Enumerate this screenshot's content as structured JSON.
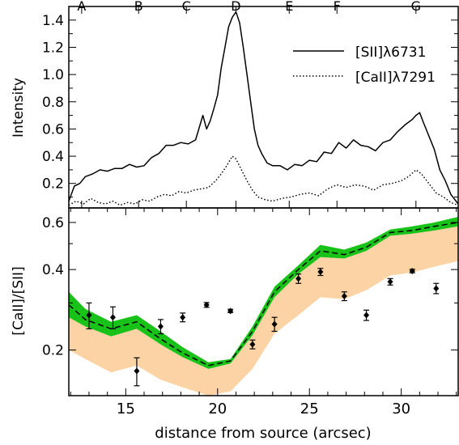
{
  "chart_data": [
    {
      "type": "line",
      "ylabel": "Intensity",
      "xlim": [
        11.9,
        33.1
      ],
      "ylim": [
        0.02,
        1.5
      ],
      "yticks": [
        0.2,
        0.4,
        0.6,
        0.8,
        1.0,
        1.2,
        1.4
      ],
      "ytick_labels": [
        "0.2",
        "0.4",
        "0.6",
        "0.8",
        "1.0",
        "1.2",
        "1.4"
      ],
      "top_markers": [
        {
          "label": "A",
          "x": 12.6
        },
        {
          "label": "B",
          "x": 15.7
        },
        {
          "label": "C",
          "x": 18.3
        },
        {
          "label": "D",
          "x": 21.0
        },
        {
          "label": "E",
          "x": 23.9
        },
        {
          "label": "F",
          "x": 26.5
        },
        {
          "label": "G",
          "x": 30.8
        }
      ],
      "legend": "top-right",
      "series": [
        {
          "name": "[SII]λ6731",
          "style": "solid",
          "x": [
            11.9,
            12.2,
            12.5,
            12.8,
            13.2,
            13.6,
            14.0,
            14.4,
            14.8,
            15.2,
            15.6,
            16.0,
            16.4,
            16.8,
            17.2,
            17.6,
            18.0,
            18.4,
            18.8,
            19.2,
            19.4,
            19.6,
            19.8,
            20.0,
            20.2,
            20.4,
            20.6,
            20.8,
            21.0,
            21.2,
            21.4,
            21.6,
            21.8,
            22.0,
            22.2,
            22.4,
            22.7,
            23.0,
            23.4,
            23.8,
            24.2,
            24.6,
            25.0,
            25.4,
            25.8,
            26.2,
            26.6,
            27.0,
            27.4,
            27.8,
            28.2,
            28.6,
            29.0,
            29.4,
            29.8,
            30.2,
            30.6,
            30.8,
            31.0,
            31.2,
            31.5,
            31.8,
            32.1,
            32.4,
            32.7,
            33.1
          ],
          "y": [
            0.07,
            0.18,
            0.2,
            0.25,
            0.27,
            0.3,
            0.29,
            0.31,
            0.31,
            0.34,
            0.32,
            0.33,
            0.39,
            0.42,
            0.48,
            0.48,
            0.5,
            0.49,
            0.52,
            0.7,
            0.6,
            0.66,
            0.75,
            0.85,
            1.05,
            1.2,
            1.35,
            1.42,
            1.46,
            1.38,
            1.2,
            1.0,
            0.8,
            0.6,
            0.48,
            0.42,
            0.35,
            0.33,
            0.33,
            0.3,
            0.34,
            0.33,
            0.37,
            0.36,
            0.43,
            0.42,
            0.5,
            0.46,
            0.52,
            0.48,
            0.47,
            0.44,
            0.5,
            0.52,
            0.58,
            0.63,
            0.67,
            0.7,
            0.72,
            0.65,
            0.55,
            0.45,
            0.3,
            0.22,
            0.12,
            0.05
          ]
        },
        {
          "name": "[CaII]λ7291",
          "style": "dotted",
          "x": [
            11.9,
            12.3,
            12.7,
            13.1,
            13.5,
            13.9,
            14.3,
            14.7,
            15.1,
            15.5,
            15.9,
            16.3,
            16.7,
            17.1,
            17.5,
            17.9,
            18.3,
            18.7,
            19.1,
            19.5,
            19.9,
            20.2,
            20.5,
            20.8,
            21.0,
            21.3,
            21.6,
            21.9,
            22.2,
            22.6,
            23.0,
            23.5,
            24.0,
            24.5,
            25.0,
            25.5,
            26.0,
            26.5,
            27.0,
            27.5,
            28.0,
            28.5,
            29.0,
            29.5,
            30.0,
            30.4,
            30.8,
            31.1,
            31.5,
            31.9,
            32.3,
            32.7,
            33.1
          ],
          "y": [
            0.04,
            0.07,
            0.05,
            0.09,
            0.06,
            0.05,
            0.07,
            0.04,
            0.06,
            0.05,
            0.08,
            0.07,
            0.1,
            0.12,
            0.11,
            0.14,
            0.13,
            0.15,
            0.16,
            0.17,
            0.22,
            0.27,
            0.33,
            0.4,
            0.38,
            0.3,
            0.22,
            0.15,
            0.1,
            0.08,
            0.07,
            0.09,
            0.1,
            0.12,
            0.13,
            0.11,
            0.16,
            0.19,
            0.17,
            0.19,
            0.18,
            0.15,
            0.19,
            0.2,
            0.22,
            0.25,
            0.3,
            0.27,
            0.2,
            0.13,
            0.1,
            0.06,
            0.04
          ]
        }
      ]
    },
    {
      "type": "line",
      "xlabel": "distance from source (arcsec)",
      "ylabel": "[CaII]/[SII]",
      "xlim": [
        11.9,
        33.1
      ],
      "yscale": "log",
      "ylim": [
        0.135,
        0.68
      ],
      "xticks": [
        15,
        20,
        25,
        30
      ],
      "xtick_labels": [
        "15",
        "20",
        "25",
        "30"
      ],
      "yticks": [
        0.2,
        0.3,
        0.4,
        0.5,
        0.6
      ],
      "ytick_labels": [
        "0.2",
        "",
        "0.4",
        "",
        "0.6"
      ],
      "series": [
        {
          "name": "",
          "style": "dashed",
          "x": [
            11.9,
            12.8,
            14.2,
            15.6,
            16.9,
            18.1,
            19.5,
            20.7,
            21.9,
            23.1,
            24.4,
            25.6,
            26.9,
            28.1,
            29.4,
            30.6,
            31.8,
            33.1
          ],
          "y": [
            0.295,
            0.26,
            0.24,
            0.255,
            0.22,
            0.195,
            0.175,
            0.182,
            0.235,
            0.33,
            0.4,
            0.47,
            0.455,
            0.485,
            0.55,
            0.56,
            0.58,
            0.6
          ]
        },
        {
          "name": "",
          "style": "green band",
          "x": [
            11.9,
            12.8,
            14.2,
            15.6,
            16.9,
            18.1,
            19.5,
            20.7,
            21.9,
            23.1,
            24.4,
            25.6,
            26.9,
            28.1,
            29.4,
            30.6,
            31.8,
            33.1
          ],
          "upper": [
            0.33,
            0.285,
            0.255,
            0.27,
            0.235,
            0.205,
            0.18,
            0.185,
            0.245,
            0.345,
            0.415,
            0.495,
            0.475,
            0.505,
            0.565,
            0.58,
            0.6,
            0.63
          ],
          "lower": [
            0.265,
            0.245,
            0.225,
            0.24,
            0.21,
            0.188,
            0.17,
            0.178,
            0.227,
            0.315,
            0.385,
            0.445,
            0.44,
            0.47,
            0.535,
            0.545,
            0.56,
            0.58
          ]
        },
        {
          "name": "",
          "style": "orange band",
          "x": [
            11.9,
            12.8,
            14.2,
            15.6,
            16.9,
            18.1,
            19.5,
            20.7,
            21.9,
            23.1,
            24.4,
            25.6,
            26.9,
            28.1,
            29.4,
            30.6,
            31.8,
            33.1
          ],
          "upper": [
            0.265,
            0.245,
            0.225,
            0.24,
            0.21,
            0.188,
            0.17,
            0.178,
            0.227,
            0.315,
            0.385,
            0.445,
            0.44,
            0.47,
            0.535,
            0.545,
            0.56,
            0.58
          ],
          "lower": [
            0.2,
            0.185,
            0.165,
            0.175,
            0.155,
            0.145,
            0.135,
            0.14,
            0.17,
            0.23,
            0.27,
            0.315,
            0.31,
            0.335,
            0.38,
            0.39,
            0.41,
            0.43
          ]
        },
        {
          "name": "",
          "style": "points with error bars",
          "x": [
            13.0,
            14.3,
            15.6,
            16.9,
            18.1,
            19.4,
            20.7,
            21.9,
            23.1,
            24.4,
            25.6,
            26.9,
            28.1,
            29.4,
            30.6,
            31.9
          ],
          "y": [
            0.27,
            0.265,
            0.167,
            0.245,
            0.265,
            0.295,
            0.28,
            0.21,
            0.25,
            0.37,
            0.392,
            0.318,
            0.27,
            0.36,
            0.395,
            0.34
          ],
          "yerr": [
            0.03,
            0.025,
            0.02,
            0.015,
            0.01,
            0.006,
            0.004,
            0.008,
            0.015,
            0.015,
            0.012,
            0.012,
            0.012,
            0.01,
            0.006,
            0.015
          ]
        }
      ]
    }
  ]
}
